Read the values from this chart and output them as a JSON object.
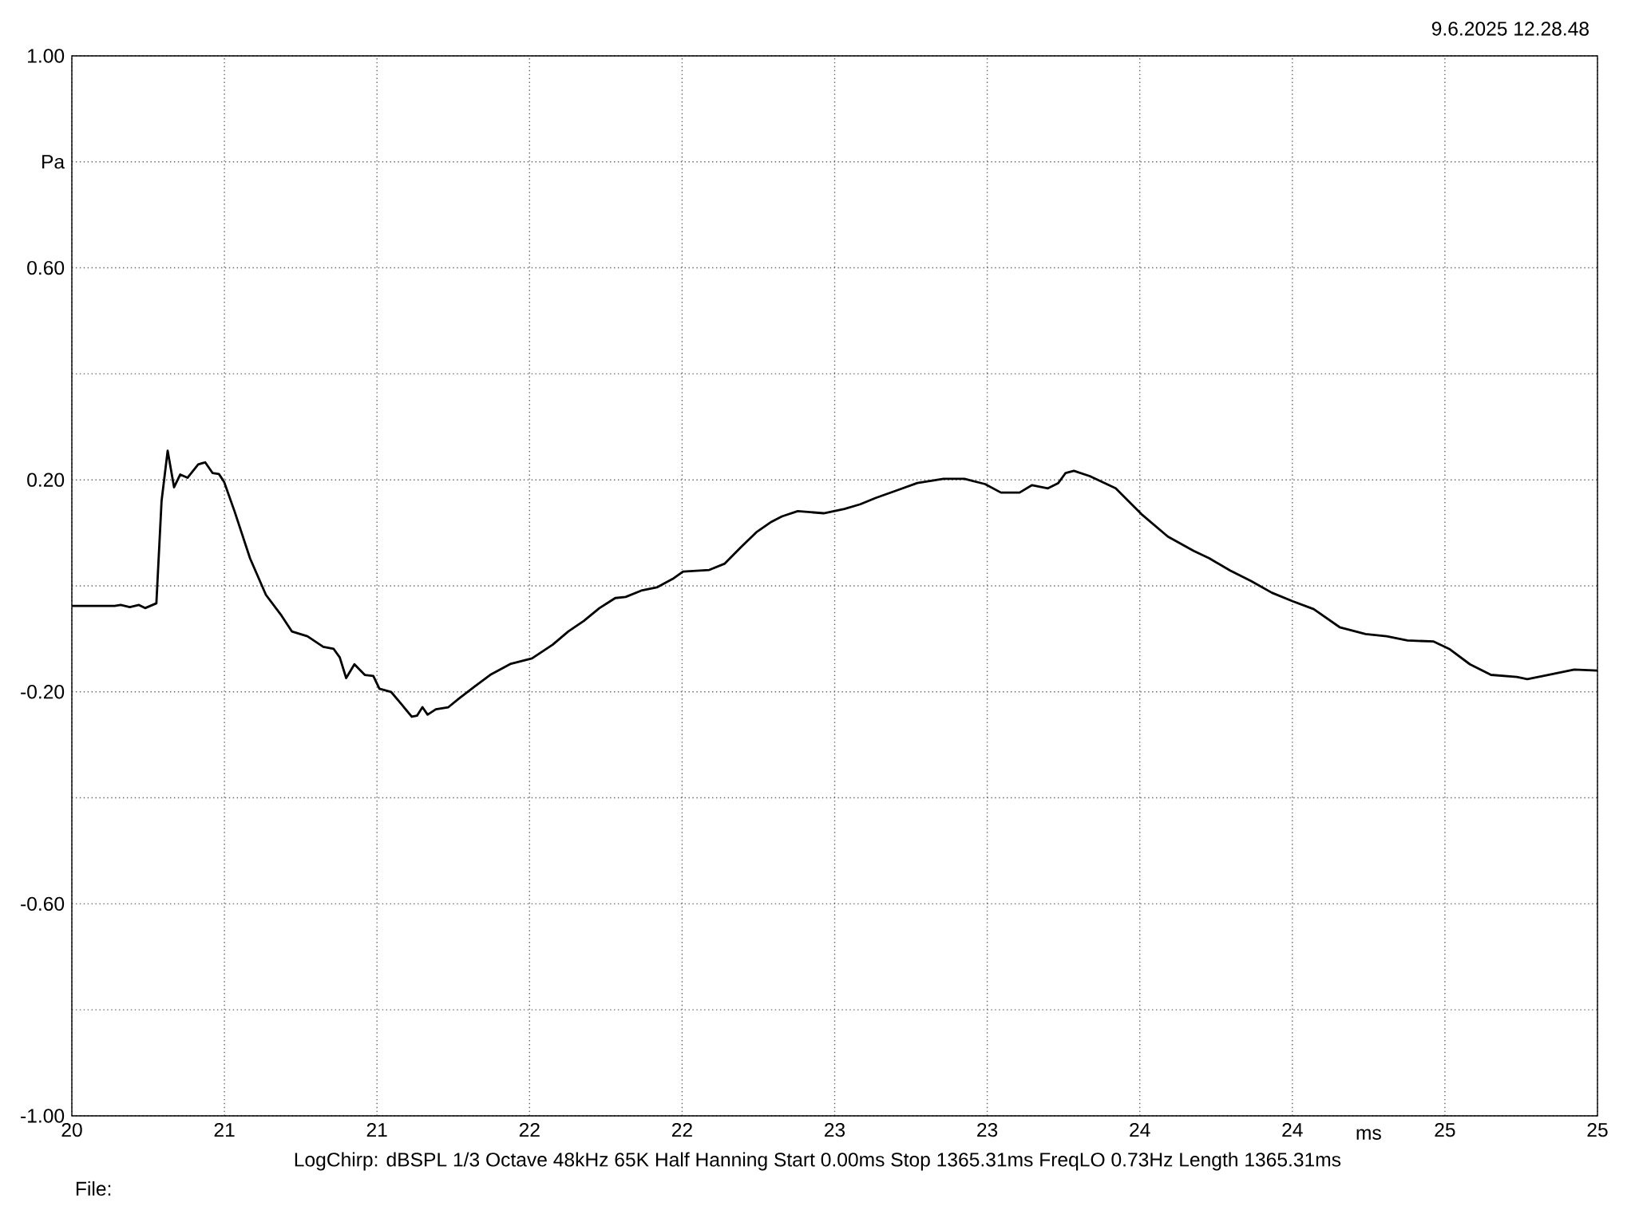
{
  "chart_data": {
    "type": "line",
    "xlabel": "ms",
    "ylabel": "Pa",
    "annotations": [
      "9.6.2025 12.28.48",
      "LogChirp:  dBSPL   1/3 Octave   48kHz   65K   Half Hanning   Start 0.00ms    Stop 1365.31ms    FreqLO 0.73Hz    Length 1365.31ms",
      "File:"
    ],
    "xlim": [
      20,
      25
    ],
    "ylim": [
      -1,
      1
    ],
    "xticks": [
      {
        "value": 20,
        "label": "20"
      },
      {
        "value": 20.5,
        "label": "21"
      },
      {
        "value": 21,
        "label": "21"
      },
      {
        "value": 21.5,
        "label": "22"
      },
      {
        "value": 22,
        "label": "22"
      },
      {
        "value": 22.5,
        "label": "23"
      },
      {
        "value": 23,
        "label": "23"
      },
      {
        "value": 23.5,
        "label": "24"
      },
      {
        "value": 24,
        "label": "24"
      },
      {
        "value": 24.5,
        "label": "25"
      },
      {
        "value": 25,
        "label": "25"
      }
    ],
    "yticks": [
      {
        "value": -1,
        "label": "-1.00"
      },
      {
        "value": -0.8,
        "label": null
      },
      {
        "value": -0.6,
        "label": "-0.60"
      },
      {
        "value": -0.4,
        "label": null
      },
      {
        "value": -0.2,
        "label": "-0.20"
      },
      {
        "value": 0,
        "label": null
      },
      {
        "value": 0.2,
        "label": "0.20"
      },
      {
        "value": 0.4,
        "label": null
      },
      {
        "value": 0.6,
        "label": "0.60"
      },
      {
        "value": 0.8,
        "label": null
      },
      {
        "value": 1,
        "label": "1.00"
      }
    ],
    "grid": true,
    "marker": "none",
    "line_style": "solid",
    "series": [
      {
        "color": "#000000",
        "x": [
          20,
          20.14,
          20.16,
          20.19,
          20.22,
          20.24,
          20.277,
          20.294,
          20.314,
          20.335,
          20.355,
          20.379,
          20.414,
          20.437,
          20.461,
          20.482,
          20.499,
          20.533,
          20.584,
          20.636,
          20.687,
          20.721,
          20.772,
          20.824,
          20.858,
          20.878,
          20.899,
          20.926,
          20.96,
          20.988,
          21.008,
          21.046,
          21.08,
          21.114,
          21.131,
          21.149,
          21.166,
          21.193,
          21.234,
          21.268,
          21.32,
          21.371,
          21.439,
          21.508,
          21.576,
          21.627,
          21.678,
          21.729,
          21.781,
          21.815,
          21.866,
          21.917,
          21.969,
          22.003,
          22.089,
          22.14,
          22.191,
          22.243,
          22.293,
          22.327,
          22.379,
          22.464,
          22.532,
          22.584,
          22.635,
          22.703,
          22.771,
          22.857,
          22.925,
          22.993,
          23.045,
          23.106,
          23.147,
          23.199,
          23.233,
          23.257,
          23.284,
          23.336,
          23.421,
          23.506,
          23.592,
          23.677,
          23.728,
          23.796,
          23.865,
          23.933,
          24.001,
          24.07,
          24.155,
          24.24,
          24.309,
          24.377,
          24.463,
          24.514,
          24.582,
          24.651,
          24.736,
          24.77,
          24.822,
          24.873,
          24.924,
          25
        ],
        "values": [
          -0.038,
          -0.038,
          -0.036,
          -0.04,
          -0.036,
          -0.042,
          -0.033,
          0.16,
          0.255,
          0.186,
          0.21,
          0.204,
          0.229,
          0.233,
          0.213,
          0.211,
          0.196,
          0.141,
          0.052,
          -0.017,
          -0.056,
          -0.086,
          -0.095,
          -0.115,
          -0.119,
          -0.135,
          -0.174,
          -0.148,
          -0.168,
          -0.17,
          -0.194,
          -0.2,
          -0.223,
          -0.247,
          -0.245,
          -0.229,
          -0.243,
          -0.233,
          -0.229,
          -0.213,
          -0.19,
          -0.168,
          -0.147,
          -0.137,
          -0.111,
          -0.086,
          -0.066,
          -0.042,
          -0.023,
          -0.021,
          -0.009,
          -0.003,
          0.013,
          0.027,
          0.03,
          0.042,
          0.072,
          0.101,
          0.121,
          0.131,
          0.141,
          0.137,
          0.145,
          0.154,
          0.166,
          0.18,
          0.194,
          0.202,
          0.202,
          0.192,
          0.176,
          0.176,
          0.19,
          0.184,
          0.194,
          0.213,
          0.217,
          0.207,
          0.184,
          0.135,
          0.093,
          0.066,
          0.052,
          0.029,
          0.009,
          -0.013,
          -0.029,
          -0.044,
          -0.078,
          -0.091,
          -0.095,
          -0.103,
          -0.105,
          -0.119,
          -0.148,
          -0.168,
          -0.172,
          -0.176,
          -0.17,
          -0.164,
          -0.158,
          -0.16
        ]
      }
    ]
  }
}
